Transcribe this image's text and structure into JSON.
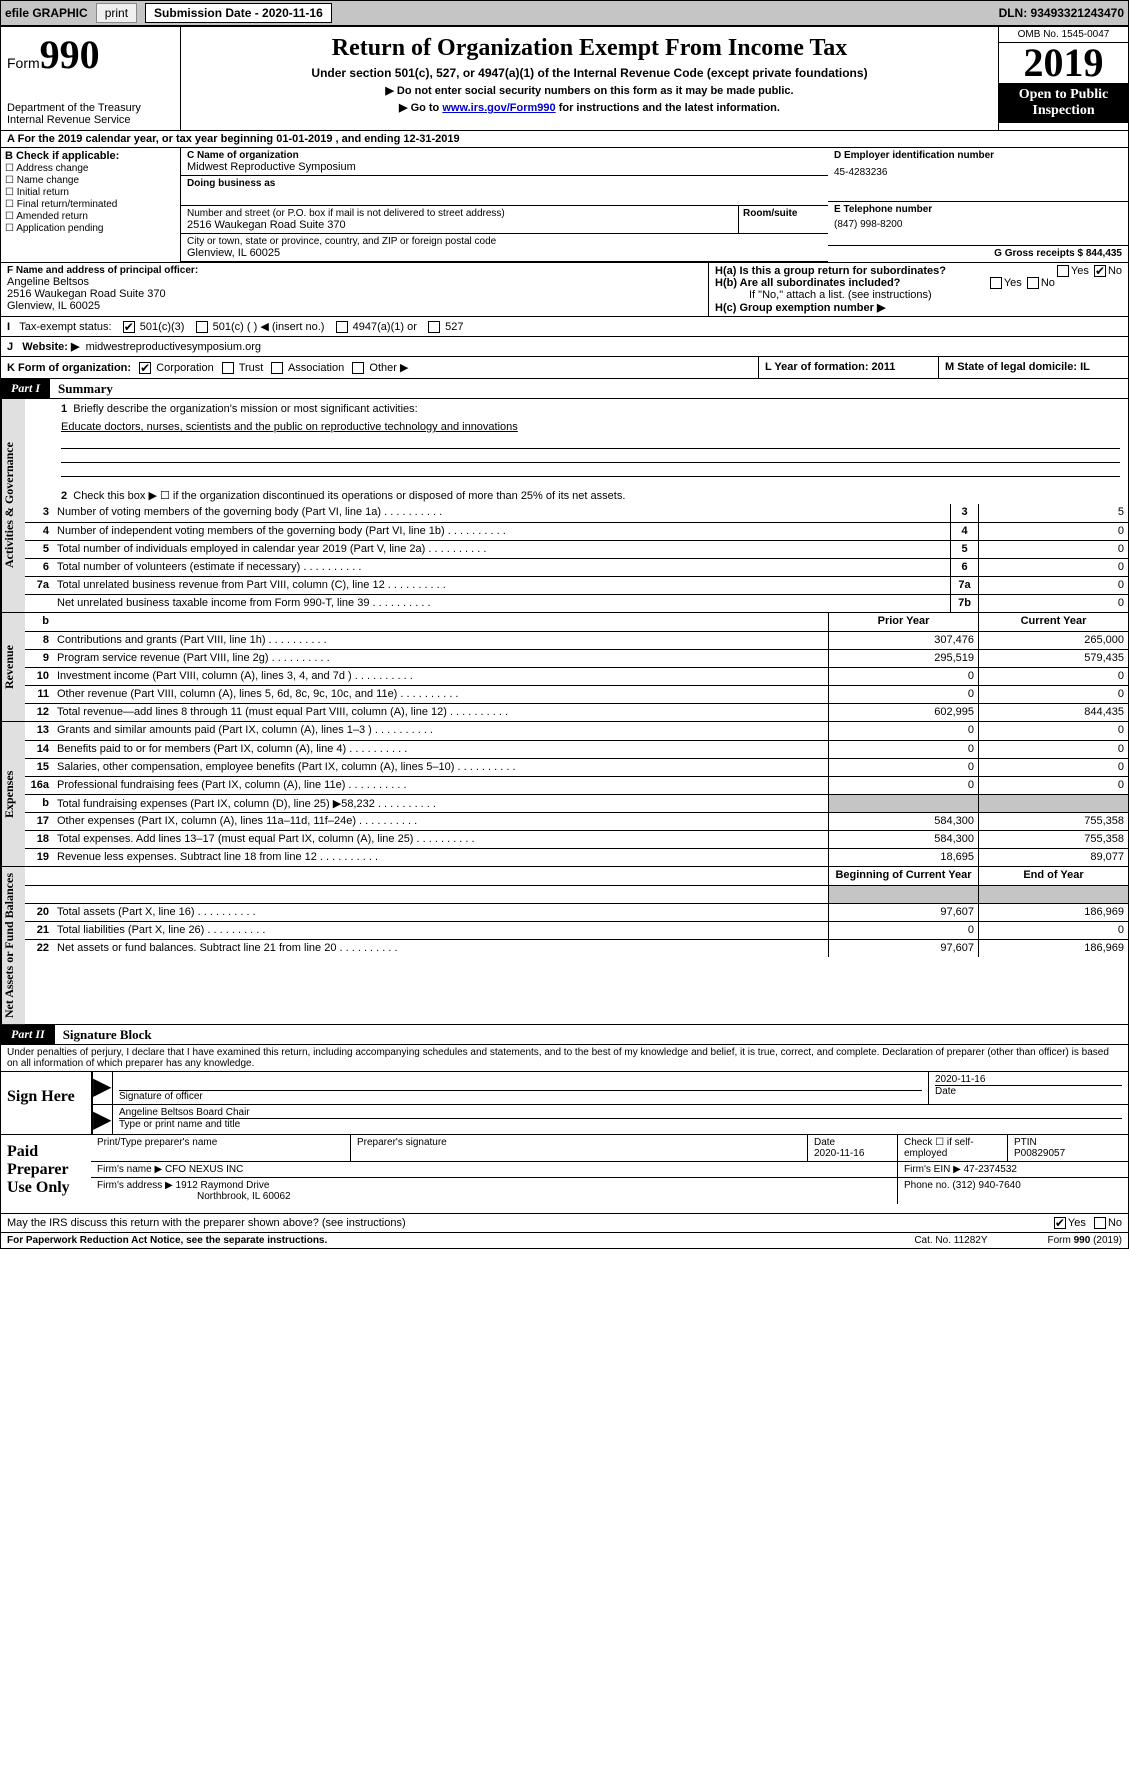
{
  "topbar": {
    "efile": "efile GRAPHIC",
    "print": "print",
    "submission_label": "Submission Date - 2020-11-16",
    "dln": "DLN: 93493321243470"
  },
  "header": {
    "form_prefix": "Form",
    "form_number": "990",
    "department": "Department of the Treasury\nInternal Revenue Service",
    "title": "Return of Organization Exempt From Income Tax",
    "subtitle": "Under section 501(c), 527, or 4947(a)(1) of the Internal Revenue Code (except private foundations)",
    "tip1": "▶ Do not enter social security numbers on this form as it may be made public.",
    "tip2_pre": "▶ Go to ",
    "tip2_link": "www.irs.gov/Form990",
    "tip2_post": " for instructions and the latest information.",
    "omb": "OMB No. 1545-0047",
    "year": "2019",
    "open_public": "Open to Public Inspection"
  },
  "period": {
    "text": "For the 2019 calendar year, or tax year beginning 01-01-2019   , and ending 12-31-2019"
  },
  "blockB": {
    "label": "B Check if applicable:",
    "opts": [
      "Address change",
      "Name change",
      "Initial return",
      "Final return/terminated",
      "Amended return",
      "Application pending"
    ]
  },
  "blockC": {
    "name_label": "C Name of organization",
    "name": "Midwest Reproductive Symposium",
    "dba_label": "Doing business as",
    "addr_label": "Number and street (or P.O. box if mail is not delivered to street address)",
    "addr": "2516 Waukegan Road Suite 370",
    "room": "Room/suite",
    "city_label": "City or town, state or province, country, and ZIP or foreign postal code",
    "city": "Glenview, IL  60025"
  },
  "blockD": {
    "label": "D Employer identification number",
    "ein": "45-4283236"
  },
  "blockE": {
    "label": "E Telephone number",
    "phone": "(847) 998-8200"
  },
  "blockG": {
    "label": "G Gross receipts $ 844,435"
  },
  "blockF": {
    "label": "F  Name and address of principal officer:",
    "name": "Angeline Beltsos",
    "addr": "2516 Waukegan Road Suite 370",
    "city": "Glenview, IL  60025"
  },
  "blockH": {
    "a": "H(a)  Is this a group return for subordinates?",
    "b": "H(b)  Are all subordinates included?",
    "b_note": "If \"No,\" attach a list. (see instructions)",
    "c": "H(c)  Group exemption number ▶"
  },
  "lineI": {
    "label": "Tax-exempt status:",
    "opts": [
      "501(c)(3)",
      "501(c) (  ) ◀ (insert no.)",
      "4947(a)(1) or",
      "527"
    ]
  },
  "lineJ": {
    "label": "Website: ▶",
    "value": "midwestreproductivesymposium.org"
  },
  "lineK": {
    "label": "K Form of organization:",
    "opts": [
      "Corporation",
      "Trust",
      "Association",
      "Other ▶"
    ]
  },
  "lineL": {
    "label": "L Year of formation: 2011"
  },
  "lineM": {
    "label": "M State of legal domicile: IL"
  },
  "parts": {
    "p1_tag": "Part I",
    "p1_title": "Summary",
    "p2_tag": "Part II",
    "p2_title": "Signature Block"
  },
  "summary": {
    "side_labels": [
      "Activities & Governance",
      "Revenue",
      "Expenses",
      "Net Assets or Fund Balances"
    ],
    "q1": "Briefly describe the organization's mission or most significant activities:",
    "q1_ans": "Educate doctors, nurses, scientists and the public on reproductive technology and innovations",
    "q2": "Check this box ▶ ☐  if the organization discontinued its operations or disposed of more than 25% of its net assets.",
    "col_prior": "Prior Year",
    "col_current": "Current Year",
    "col_begin": "Beginning of Current Year",
    "col_end": "End of Year",
    "rows_top": [
      {
        "n": "3",
        "label": "Number of voting members of the governing body (Part VI, line 1a)",
        "box": "3",
        "val": "5"
      },
      {
        "n": "4",
        "label": "Number of independent voting members of the governing body (Part VI, line 1b)",
        "box": "4",
        "val": "0"
      },
      {
        "n": "5",
        "label": "Total number of individuals employed in calendar year 2019 (Part V, line 2a)",
        "box": "5",
        "val": "0"
      },
      {
        "n": "6",
        "label": "Total number of volunteers (estimate if necessary)",
        "box": "6",
        "val": "0"
      },
      {
        "n": "7a",
        "label": "Total unrelated business revenue from Part VIII, column (C), line 12",
        "box": "7a",
        "val": "0"
      },
      {
        "n": "",
        "label": "Net unrelated business taxable income from Form 990-T, line 39",
        "box": "7b",
        "val": "0"
      }
    ],
    "rows_rev": [
      {
        "n": "8",
        "label": "Contributions and grants (Part VIII, line 1h)",
        "prior": "307,476",
        "curr": "265,000"
      },
      {
        "n": "9",
        "label": "Program service revenue (Part VIII, line 2g)",
        "prior": "295,519",
        "curr": "579,435"
      },
      {
        "n": "10",
        "label": "Investment income (Part VIII, column (A), lines 3, 4, and 7d )",
        "prior": "0",
        "curr": "0"
      },
      {
        "n": "11",
        "label": "Other revenue (Part VIII, column (A), lines 5, 6d, 8c, 9c, 10c, and 11e)",
        "prior": "0",
        "curr": "0"
      },
      {
        "n": "12",
        "label": "Total revenue—add lines 8 through 11 (must equal Part VIII, column (A), line 12)",
        "prior": "602,995",
        "curr": "844,435"
      }
    ],
    "rows_exp": [
      {
        "n": "13",
        "label": "Grants and similar amounts paid (Part IX, column (A), lines 1–3 )",
        "prior": "0",
        "curr": "0"
      },
      {
        "n": "14",
        "label": "Benefits paid to or for members (Part IX, column (A), line 4)",
        "prior": "0",
        "curr": "0"
      },
      {
        "n": "15",
        "label": "Salaries, other compensation, employee benefits (Part IX, column (A), lines 5–10)",
        "prior": "0",
        "curr": "0"
      },
      {
        "n": "16a",
        "label": "Professional fundraising fees (Part IX, column (A), line 11e)",
        "prior": "0",
        "curr": "0"
      },
      {
        "n": "b",
        "label": "Total fundraising expenses (Part IX, column (D), line 25) ▶58,232",
        "prior": "",
        "curr": "",
        "shade": true
      },
      {
        "n": "17",
        "label": "Other expenses (Part IX, column (A), lines 11a–11d, 11f–24e)",
        "prior": "584,300",
        "curr": "755,358"
      },
      {
        "n": "18",
        "label": "Total expenses. Add lines 13–17 (must equal Part IX, column (A), line 25)",
        "prior": "584,300",
        "curr": "755,358"
      },
      {
        "n": "19",
        "label": "Revenue less expenses. Subtract line 18 from line 12",
        "prior": "18,695",
        "curr": "89,077"
      }
    ],
    "rows_net": [
      {
        "n": "20",
        "label": "Total assets (Part X, line 16)",
        "prior": "97,607",
        "curr": "186,969"
      },
      {
        "n": "21",
        "label": "Total liabilities (Part X, line 26)",
        "prior": "0",
        "curr": "0"
      },
      {
        "n": "22",
        "label": "Net assets or fund balances. Subtract line 21 from line 20",
        "prior": "97,607",
        "curr": "186,969"
      }
    ]
  },
  "sig": {
    "perjury": "Under penalties of perjury, I declare that I have examined this return, including accompanying schedules and statements, and to the best of my knowledge and belief, it is true, correct, and complete. Declaration of preparer (other than officer) is based on all information of which preparer has any knowledge.",
    "sign_here": "Sign Here",
    "sig_officer": "Signature of officer",
    "date_lbl": "Date",
    "date_val": "2020-11-16",
    "name_title": "Angeline Beltsos  Board Chair",
    "type_name": "Type or print name and title",
    "paid": "Paid Preparer Use Only",
    "p_name": "Print/Type preparer's name",
    "p_sig": "Preparer's signature",
    "p_date_lbl": "Date",
    "p_date": "2020-11-16",
    "p_check": "Check ☐ if self-employed",
    "ptin_lbl": "PTIN",
    "ptin": "P00829057",
    "firm_name_lbl": "Firm's name    ▶",
    "firm_name": "CFO NEXUS INC",
    "firm_ein_lbl": "Firm's EIN ▶",
    "firm_ein": "47-2374532",
    "firm_addr_lbl": "Firm's address ▶",
    "firm_addr": "1912 Raymond Drive",
    "firm_city": "Northbrook, IL  60062",
    "phone_lbl": "Phone no.",
    "phone": "(312) 940-7640",
    "discuss": "May the IRS discuss this return with the preparer shown above? (see instructions)",
    "paperwork": "For Paperwork Reduction Act Notice, see the separate instructions.",
    "cat": "Cat. No. 11282Y",
    "form_foot": "Form 990 (2019)"
  }
}
